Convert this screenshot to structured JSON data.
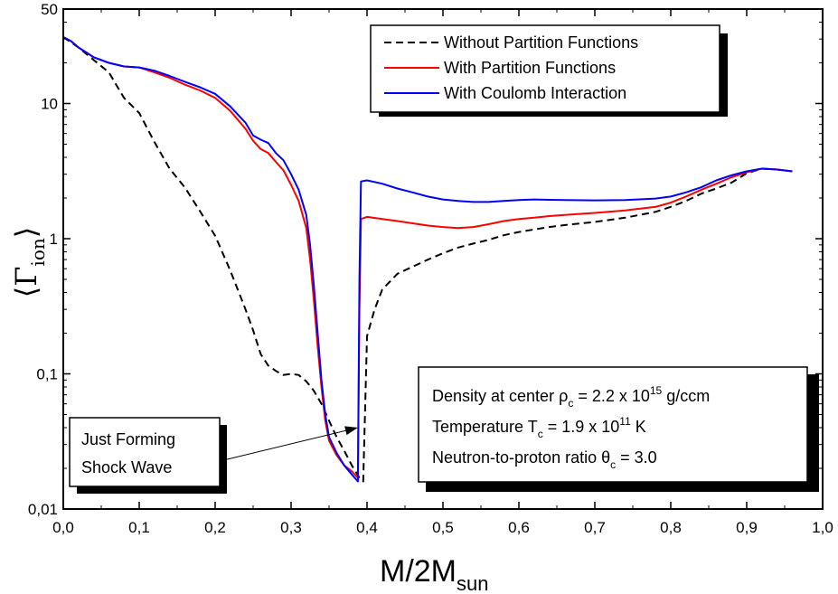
{
  "chart_data": {
    "type": "line",
    "xlabel": {
      "main": "M/2M",
      "sub": "sun"
    },
    "ylabel": {
      "main": "Γ",
      "sub": "ion"
    },
    "xlim": [
      0.0,
      1.0
    ],
    "ylim": [
      0.01,
      50
    ],
    "yscale": "log",
    "x_ticks": [
      "0,0",
      "0,1",
      "0,2",
      "0,3",
      "0,4",
      "0,5",
      "0,6",
      "0,7",
      "0,8",
      "0,9",
      "1,0"
    ],
    "y_ticks": [
      {
        "value": 0.01,
        "label": "0,01"
      },
      {
        "value": 0.1,
        "label": "0,1"
      },
      {
        "value": 1,
        "label": "1"
      },
      {
        "value": 10,
        "label": "10"
      },
      {
        "value": 50,
        "label": "50"
      }
    ],
    "grid": false,
    "legend_position": "top-right",
    "series": [
      {
        "name": "Without Partition Functions",
        "style": "dashed",
        "color": "#000000",
        "points": [
          [
            0.0,
            31
          ],
          [
            0.02,
            26
          ],
          [
            0.04,
            21
          ],
          [
            0.06,
            17
          ],
          [
            0.08,
            11
          ],
          [
            0.1,
            8.5
          ],
          [
            0.12,
            5.2
          ],
          [
            0.14,
            3.3
          ],
          [
            0.16,
            2.4
          ],
          [
            0.18,
            1.6
          ],
          [
            0.2,
            1.05
          ],
          [
            0.22,
            0.58
          ],
          [
            0.24,
            0.3
          ],
          [
            0.25,
            0.21
          ],
          [
            0.26,
            0.14
          ],
          [
            0.27,
            0.115
          ],
          [
            0.28,
            0.105
          ],
          [
            0.29,
            0.098
          ],
          [
            0.3,
            0.1
          ],
          [
            0.31,
            0.098
          ],
          [
            0.32,
            0.088
          ],
          [
            0.33,
            0.075
          ],
          [
            0.34,
            0.06
          ],
          [
            0.35,
            0.045
          ],
          [
            0.36,
            0.034
          ],
          [
            0.37,
            0.027
          ],
          [
            0.38,
            0.021
          ],
          [
            0.39,
            0.017
          ],
          [
            0.395,
            0.016
          ],
          [
            0.4,
            0.19
          ],
          [
            0.41,
            0.3
          ],
          [
            0.42,
            0.42
          ],
          [
            0.44,
            0.55
          ],
          [
            0.46,
            0.62
          ],
          [
            0.48,
            0.7
          ],
          [
            0.5,
            0.78
          ],
          [
            0.52,
            0.86
          ],
          [
            0.54,
            0.92
          ],
          [
            0.56,
            0.98
          ],
          [
            0.58,
            1.06
          ],
          [
            0.6,
            1.12
          ],
          [
            0.62,
            1.17
          ],
          [
            0.64,
            1.22
          ],
          [
            0.66,
            1.26
          ],
          [
            0.7,
            1.33
          ],
          [
            0.74,
            1.43
          ],
          [
            0.78,
            1.58
          ],
          [
            0.8,
            1.72
          ],
          [
            0.82,
            1.9
          ],
          [
            0.84,
            2.15
          ],
          [
            0.86,
            2.35
          ],
          [
            0.88,
            2.6
          ],
          [
            0.9,
            3.05
          ],
          [
            0.92,
            3.3
          ],
          [
            0.94,
            3.25
          ],
          [
            0.96,
            3.15
          ]
        ]
      },
      {
        "name": "With Partition Functions",
        "style": "solid",
        "color": "#ff0000",
        "points": [
          [
            0.0,
            31
          ],
          [
            0.01,
            29
          ],
          [
            0.02,
            26
          ],
          [
            0.04,
            22
          ],
          [
            0.06,
            20
          ],
          [
            0.08,
            18.8
          ],
          [
            0.1,
            18.5
          ],
          [
            0.12,
            17
          ],
          [
            0.14,
            15.5
          ],
          [
            0.16,
            13.8
          ],
          [
            0.18,
            12.5
          ],
          [
            0.2,
            11
          ],
          [
            0.22,
            8.8
          ],
          [
            0.24,
            6.5
          ],
          [
            0.25,
            5.3
          ],
          [
            0.26,
            4.6
          ],
          [
            0.27,
            4.3
          ],
          [
            0.28,
            3.7
          ],
          [
            0.29,
            3.2
          ],
          [
            0.3,
            2.5
          ],
          [
            0.31,
            1.9
          ],
          [
            0.32,
            1.2
          ],
          [
            0.325,
            0.7
          ],
          [
            0.33,
            0.35
          ],
          [
            0.335,
            0.16
          ],
          [
            0.34,
            0.08
          ],
          [
            0.345,
            0.045
          ],
          [
            0.35,
            0.032
          ],
          [
            0.36,
            0.025
          ],
          [
            0.37,
            0.021
          ],
          [
            0.38,
            0.019
          ],
          [
            0.388,
            0.017
          ],
          [
            0.39,
            0.3
          ],
          [
            0.392,
            1.4
          ],
          [
            0.4,
            1.45
          ],
          [
            0.42,
            1.4
          ],
          [
            0.44,
            1.35
          ],
          [
            0.46,
            1.3
          ],
          [
            0.48,
            1.25
          ],
          [
            0.5,
            1.22
          ],
          [
            0.52,
            1.2
          ],
          [
            0.54,
            1.22
          ],
          [
            0.56,
            1.28
          ],
          [
            0.58,
            1.35
          ],
          [
            0.6,
            1.4
          ],
          [
            0.62,
            1.43
          ],
          [
            0.64,
            1.47
          ],
          [
            0.66,
            1.5
          ],
          [
            0.7,
            1.55
          ],
          [
            0.74,
            1.62
          ],
          [
            0.78,
            1.72
          ],
          [
            0.8,
            1.85
          ],
          [
            0.82,
            2.05
          ],
          [
            0.84,
            2.3
          ],
          [
            0.86,
            2.55
          ],
          [
            0.88,
            2.85
          ],
          [
            0.9,
            3.1
          ],
          [
            0.92,
            3.3
          ],
          [
            0.94,
            3.25
          ],
          [
            0.96,
            3.15
          ]
        ]
      },
      {
        "name": "With Coulomb Interaction",
        "style": "solid",
        "color": "#0000ff",
        "points": [
          [
            0.0,
            31
          ],
          [
            0.01,
            29
          ],
          [
            0.02,
            26
          ],
          [
            0.04,
            22
          ],
          [
            0.06,
            20
          ],
          [
            0.08,
            18.8
          ],
          [
            0.1,
            18.5
          ],
          [
            0.12,
            17.5
          ],
          [
            0.14,
            16
          ],
          [
            0.16,
            14.5
          ],
          [
            0.18,
            13.2
          ],
          [
            0.2,
            11.8
          ],
          [
            0.22,
            9.5
          ],
          [
            0.24,
            7.2
          ],
          [
            0.25,
            5.8
          ],
          [
            0.26,
            5.4
          ],
          [
            0.27,
            5.1
          ],
          [
            0.28,
            4.3
          ],
          [
            0.29,
            3.8
          ],
          [
            0.3,
            3.0
          ],
          [
            0.31,
            2.3
          ],
          [
            0.32,
            1.5
          ],
          [
            0.325,
            0.9
          ],
          [
            0.33,
            0.45
          ],
          [
            0.335,
            0.2
          ],
          [
            0.34,
            0.09
          ],
          [
            0.345,
            0.05
          ],
          [
            0.35,
            0.034
          ],
          [
            0.36,
            0.026
          ],
          [
            0.37,
            0.021
          ],
          [
            0.38,
            0.018
          ],
          [
            0.388,
            0.016
          ],
          [
            0.39,
            0.5
          ],
          [
            0.392,
            2.65
          ],
          [
            0.4,
            2.7
          ],
          [
            0.42,
            2.55
          ],
          [
            0.44,
            2.35
          ],
          [
            0.46,
            2.2
          ],
          [
            0.48,
            2.05
          ],
          [
            0.5,
            1.95
          ],
          [
            0.52,
            1.9
          ],
          [
            0.54,
            1.87
          ],
          [
            0.56,
            1.87
          ],
          [
            0.58,
            1.9
          ],
          [
            0.6,
            1.93
          ],
          [
            0.62,
            1.95
          ],
          [
            0.64,
            1.94
          ],
          [
            0.66,
            1.93
          ],
          [
            0.7,
            1.92
          ],
          [
            0.74,
            1.93
          ],
          [
            0.78,
            1.98
          ],
          [
            0.8,
            2.05
          ],
          [
            0.82,
            2.2
          ],
          [
            0.84,
            2.4
          ],
          [
            0.86,
            2.7
          ],
          [
            0.88,
            2.95
          ],
          [
            0.9,
            3.15
          ],
          [
            0.92,
            3.3
          ],
          [
            0.94,
            3.25
          ],
          [
            0.96,
            3.15
          ]
        ]
      }
    ],
    "info_box": {
      "lines": [
        {
          "text": "Density at center ρ",
          "sub": "c",
          "after": " = 2.2 x 10",
          "sup": "15",
          "tail": " g/ccm"
        },
        {
          "text": "Temperature T",
          "sub": "c",
          "after": " = 1.9 x 10",
          "sup": "11",
          "tail": " K"
        },
        {
          "text": "Neutron-to-proton ratio θ",
          "sub": "c",
          "after": " = 3.0",
          "sup": "",
          "tail": ""
        }
      ]
    },
    "annotation": {
      "lines": [
        "Just Forming",
        "Shock Wave"
      ],
      "arrow_target": [
        0.388,
        0.04
      ]
    }
  }
}
